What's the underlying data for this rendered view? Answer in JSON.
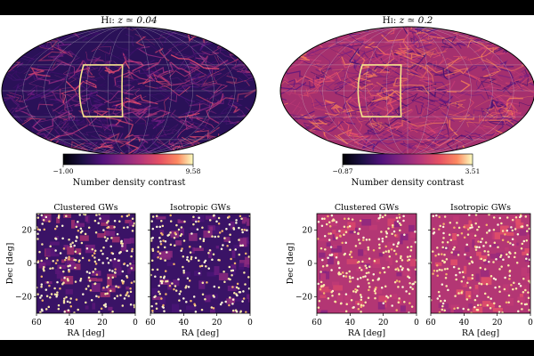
{
  "colors": {
    "magma_low": "#1a0c40",
    "magma_mid": "#b63679",
    "magma_high": "#f9e08e",
    "box": "#f6e58d"
  },
  "chart_data": [
    {
      "type": "heatmap",
      "projection": "mollweide",
      "title_prefix": "H",
      "title_roman": "I",
      "title_z": "z ≃ 0.04",
      "colorbar": {
        "min_label": "−1.00",
        "max_label": "9.58",
        "min": -1.0,
        "max": 9.58,
        "label": "Number density contrast"
      },
      "region_box": {
        "ra": [
          0,
          60
        ],
        "dec": [
          -30,
          30
        ]
      }
    },
    {
      "type": "heatmap",
      "projection": "mollweide",
      "title_prefix": "H",
      "title_roman": "I",
      "title_z": "z ≃ 0.2",
      "colorbar": {
        "min_label": "−0.87",
        "max_label": "3.51",
        "min": -0.87,
        "max": 3.51,
        "label": "Number density contrast"
      },
      "region_box": {
        "ra": [
          0,
          60
        ],
        "dec": [
          -30,
          30
        ]
      }
    },
    {
      "type": "scatter",
      "title": "Clustered GWs",
      "xlabel": "RA [deg]",
      "ylabel": "Dec [deg]",
      "xlim": [
        60,
        0
      ],
      "ylim": [
        -30,
        30
      ],
      "xticks": [
        "60",
        "40",
        "20",
        "0"
      ],
      "yticks": [
        "20",
        "0",
        "−20"
      ]
    },
    {
      "type": "scatter",
      "title": "Isotropic GWs",
      "xlabel": "RA [deg]",
      "xlim": [
        60,
        0
      ],
      "ylim": [
        -30,
        30
      ],
      "xticks": [
        "60",
        "40",
        "20",
        "0"
      ]
    },
    {
      "type": "scatter",
      "title": "Clustered GWs",
      "xlabel": "RA [deg]",
      "ylabel": "Dec [deg]",
      "xlim": [
        60,
        0
      ],
      "ylim": [
        -30,
        30
      ],
      "xticks": [
        "60",
        "40",
        "20",
        "0"
      ],
      "yticks": [
        "20",
        "0",
        "−20"
      ]
    },
    {
      "type": "scatter",
      "title": "Isotropic GWs",
      "xlabel": "RA [deg]",
      "xlim": [
        60,
        0
      ],
      "ylim": [
        -30,
        30
      ],
      "xticks": [
        "60",
        "40",
        "20",
        "0"
      ]
    }
  ]
}
